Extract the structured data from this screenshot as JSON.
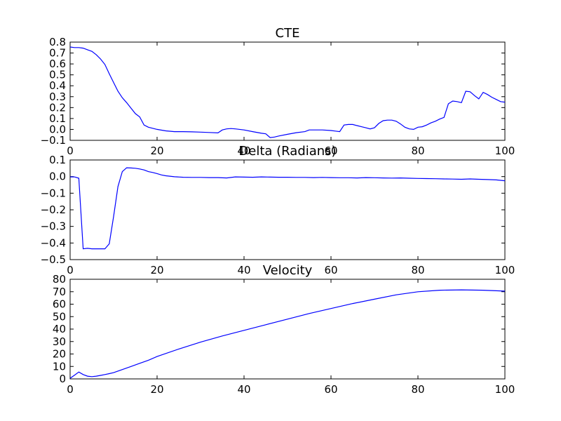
{
  "chart_data": [
    {
      "type": "line",
      "title": "CTE",
      "xlabel": "",
      "ylabel": "",
      "xlim": [
        0,
        100
      ],
      "ylim": [
        -0.1,
        0.8
      ],
      "grid": false,
      "line_color": "#0000ff",
      "x_ticks": [
        "0",
        "20",
        "40",
        "60",
        "80",
        "100"
      ],
      "y_ticks": [
        "−0.1",
        "0.0",
        "0.1",
        "0.2",
        "0.3",
        "0.4",
        "0.5",
        "0.6",
        "0.7",
        "0.8"
      ],
      "series": [
        {
          "x": [
            0,
            1,
            2,
            3,
            4,
            5,
            6,
            7,
            8,
            9,
            10,
            11,
            12,
            13,
            14,
            15,
            16,
            17,
            18,
            20,
            22,
            24,
            26,
            28,
            30,
            32,
            34,
            35,
            36,
            37,
            38,
            40,
            42,
            44,
            45,
            46,
            47,
            48,
            50,
            52,
            54,
            55,
            56,
            58,
            60,
            61,
            62,
            63,
            64,
            65,
            66,
            67,
            68,
            69,
            70,
            71,
            72,
            73,
            74,
            75,
            76,
            77,
            78,
            79,
            80,
            81,
            82,
            83,
            84,
            85,
            86,
            87,
            88,
            89,
            90,
            91,
            92,
            93,
            94,
            95,
            96,
            97,
            98,
            99,
            100
          ],
          "y": [
            0.755,
            0.75,
            0.75,
            0.745,
            0.73,
            0.715,
            0.685,
            0.645,
            0.595,
            0.51,
            0.43,
            0.35,
            0.29,
            0.245,
            0.195,
            0.145,
            0.115,
            0.04,
            0.02,
            0.0,
            -0.013,
            -0.02,
            -0.02,
            -0.022,
            -0.025,
            -0.028,
            -0.032,
            -0.005,
            0.005,
            0.008,
            0.005,
            -0.005,
            -0.02,
            -0.035,
            -0.04,
            -0.075,
            -0.07,
            -0.06,
            -0.045,
            -0.03,
            -0.02,
            -0.005,
            -0.005,
            -0.005,
            -0.01,
            -0.015,
            -0.02,
            0.04,
            0.045,
            0.045,
            0.035,
            0.025,
            0.015,
            0.005,
            0.015,
            0.055,
            0.08,
            0.085,
            0.085,
            0.075,
            0.05,
            0.02,
            0.005,
            0.0,
            0.02,
            0.025,
            0.04,
            0.06,
            0.075,
            0.095,
            0.11,
            0.235,
            0.26,
            0.255,
            0.245,
            0.35,
            0.345,
            0.31,
            0.28,
            0.34,
            0.32,
            0.295,
            0.275,
            0.255,
            0.25
          ]
        }
      ]
    },
    {
      "type": "line",
      "title": "Delta (Radians)",
      "xlabel": "",
      "ylabel": "",
      "xlim": [
        0,
        100
      ],
      "ylim": [
        -0.5,
        0.1
      ],
      "grid": false,
      "line_color": "#0000ff",
      "x_ticks": [
        "0",
        "20",
        "40",
        "60",
        "80",
        "100"
      ],
      "y_ticks": [
        "−0.5",
        "−0.4",
        "−0.3",
        "−0.2",
        "−0.1",
        "0.0",
        "0.1"
      ],
      "series": [
        {
          "x": [
            0,
            1,
            2,
            3,
            4,
            5,
            6,
            7,
            8,
            9,
            10,
            11,
            12,
            13,
            14,
            15,
            16,
            17,
            18,
            19,
            20,
            21,
            22,
            24,
            26,
            28,
            30,
            32,
            34,
            36,
            38,
            40,
            42,
            44,
            46,
            48,
            50,
            52,
            54,
            56,
            58,
            60,
            62,
            64,
            66,
            68,
            70,
            72,
            74,
            76,
            78,
            80,
            82,
            84,
            86,
            88,
            90,
            92,
            94,
            96,
            98,
            100
          ],
          "y": [
            -0.002,
            -0.002,
            -0.01,
            -0.435,
            -0.432,
            -0.435,
            -0.435,
            -0.435,
            -0.435,
            -0.405,
            -0.24,
            -0.06,
            0.03,
            0.053,
            0.052,
            0.05,
            0.046,
            0.04,
            0.03,
            0.025,
            0.018,
            0.01,
            0.005,
            -0.001,
            -0.004,
            -0.005,
            -0.005,
            -0.006,
            -0.006,
            -0.008,
            -0.002,
            -0.003,
            -0.004,
            -0.002,
            -0.003,
            -0.004,
            -0.004,
            -0.005,
            -0.005,
            -0.006,
            -0.005,
            -0.006,
            -0.007,
            -0.007,
            -0.008,
            -0.006,
            -0.007,
            -0.008,
            -0.009,
            -0.008,
            -0.01,
            -0.011,
            -0.012,
            -0.013,
            -0.014,
            -0.015,
            -0.016,
            -0.014,
            -0.016,
            -0.018,
            -0.02,
            -0.025
          ]
        }
      ]
    },
    {
      "type": "line",
      "title": "Velocity",
      "xlabel": "",
      "ylabel": "",
      "xlim": [
        0,
        100
      ],
      "ylim": [
        0,
        80
      ],
      "grid": false,
      "line_color": "#0000ff",
      "x_ticks": [
        "0",
        "20",
        "40",
        "60",
        "80",
        "100"
      ],
      "y_ticks": [
        "0",
        "10",
        "20",
        "30",
        "40",
        "50",
        "60",
        "70",
        "80"
      ],
      "series": [
        {
          "x": [
            0,
            1,
            2,
            3,
            4,
            5,
            6,
            7,
            8,
            9,
            10,
            12,
            14,
            16,
            18,
            20,
            25,
            30,
            35,
            40,
            45,
            50,
            55,
            60,
            65,
            70,
            75,
            80,
            85,
            90,
            95,
            100
          ],
          "y": [
            0.5,
            3,
            5.5,
            3.5,
            2.2,
            1.8,
            2.2,
            2.8,
            3.5,
            4.2,
            5,
            7.5,
            10,
            12.5,
            15,
            18,
            24,
            29.5,
            34.5,
            39,
            43.5,
            48,
            52.5,
            56.5,
            60.5,
            64,
            67.5,
            70,
            71.2,
            71.5,
            71.2,
            70.5
          ]
        }
      ]
    }
  ]
}
